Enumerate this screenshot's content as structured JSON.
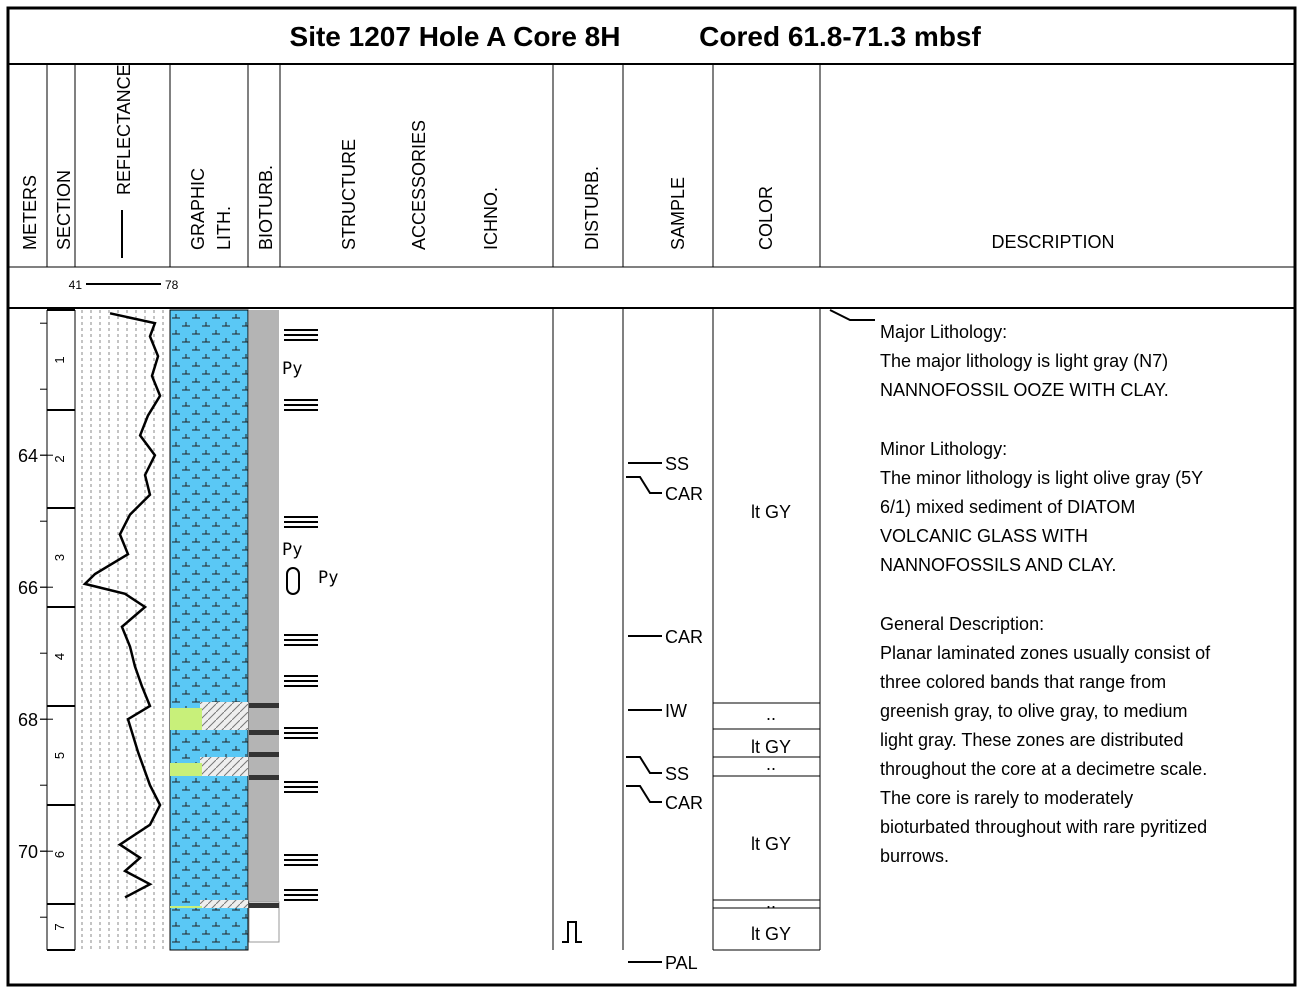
{
  "title_site": "Site 1207 Hole A Core 8H",
  "title_cored": "Cored 61.8-71.3 mbsf",
  "columns": [
    "METERS",
    "SECTION",
    "REFLECTANCE",
    "GRAPHIC",
    "LITH.",
    "BIOTURB.",
    "STRUCTURE",
    "ACCESSORIES",
    "ICHNO.",
    "DISTURB.",
    "SAMPLE",
    "COLOR",
    "DESCRIPTION"
  ],
  "meters": {
    "ylim": [
      61.8,
      71.3
    ],
    "yticks": [
      64,
      66,
      68,
      70
    ]
  },
  "sections": [
    "1",
    "2",
    "3",
    "4",
    "5",
    "6",
    "7"
  ],
  "reflectance": {
    "xlim": [
      41,
      78
    ],
    "xticks": [
      41,
      78
    ],
    "depth": [
      61.85,
      62.0,
      62.2,
      62.5,
      62.8,
      63.1,
      63.4,
      63.7,
      64.0,
      64.3,
      64.6,
      64.9,
      65.2,
      65.5,
      65.8,
      65.95,
      66.1,
      66.3,
      66.6,
      66.9,
      67.2,
      67.5,
      67.8,
      68.0,
      68.5,
      69.0,
      69.3,
      69.6,
      69.9,
      70.1,
      70.3,
      70.5,
      70.7
    ],
    "values": [
      53.5,
      73.5,
      71.3,
      74.9,
      72.2,
      75.8,
      70.4,
      66.9,
      73.5,
      69.1,
      71.3,
      62.4,
      57.9,
      61.5,
      46.8,
      42.3,
      60.2,
      69.1,
      58.8,
      62.4,
      64.6,
      67.7,
      71.3,
      61.5,
      66.0,
      71.3,
      75.8,
      71.3,
      57.9,
      66.9,
      60.2,
      71.3,
      60.2
    ]
  },
  "structure_labels": [
    "Py",
    "Py",
    "Py"
  ],
  "samples": [
    "SS",
    "CAR",
    "CAR",
    "IW",
    "SS",
    "CAR",
    "PAL"
  ],
  "colors": [
    "lt GY",
    "..",
    "lt GY",
    "..",
    "lt GY",
    "..",
    "lt GY"
  ],
  "description": [
    {
      "heading": "Major Lithology:",
      "lines": [
        "The major lithology is light gray (N7)",
        "NANNOFOSSIL OOZE WITH CLAY."
      ]
    },
    {
      "heading": "Minor Lithology:",
      "lines": [
        "The minor lithology is light olive gray (5Y",
        "6/1) mixed sediment of DIATOM",
        "VOLCANIC GLASS WITH",
        "NANNOFOSSILS AND CLAY."
      ]
    },
    {
      "heading": "General Description:",
      "lines": [
        "Planar laminated zones usually consist of",
        "three colored bands that range from",
        "greenish gray, to olive gray, to medium",
        "light gray. These zones are distributed",
        "throughout the core at a decimetre scale.",
        "The core is rarely to moderately",
        "bioturbated throughout with rare pyritized",
        "burrows."
      ]
    }
  ]
}
